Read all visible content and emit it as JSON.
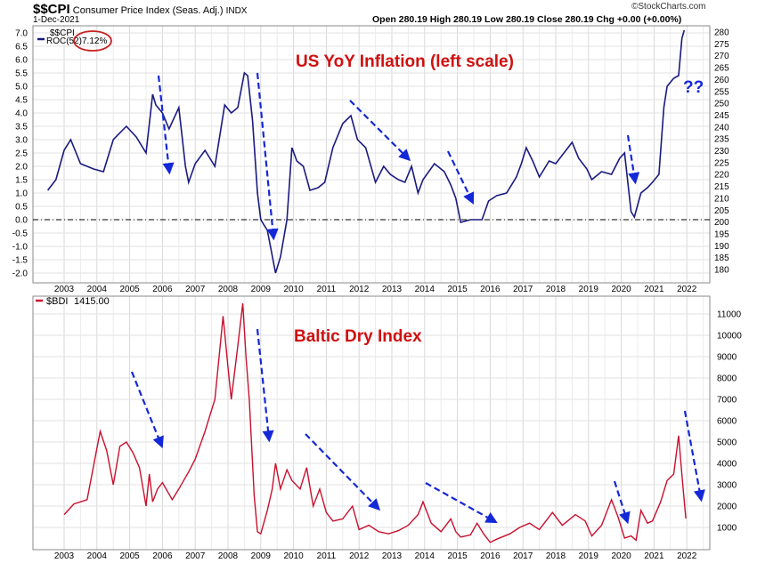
{
  "header": {
    "symbol": "$$CPI",
    "name": "Consumer Price Index (Seas. Adj.)",
    "exchange": "INDX",
    "date": "1-Dec-2021",
    "watermark": "©StockCharts.com",
    "ohlc": "Open 280.19  High 280.19  Low 280.19  Close 280.19  Chg +0.00 (+0.00%)"
  },
  "colors": {
    "cpi": "#1a1a80",
    "bdi": "#c8102e",
    "annotation_red": "#d01010",
    "arrow_blue": "#1428d8",
    "grid": "#d8d8d8"
  },
  "chart_data": [
    {
      "type": "line",
      "legend": {
        "symbol": "$$CPI",
        "indicator": "ROC(52)",
        "value": "7.12%"
      },
      "annotations": [
        "US YoY Inflation (left scale)",
        "??"
      ],
      "left_axis": {
        "ylim": [
          -2.0,
          7.0
        ],
        "ticks": [
          "7.0",
          "6.5",
          "6.0",
          "5.5",
          "5.0",
          "4.5",
          "4.0",
          "3.5",
          "3.0",
          "2.5",
          "2.0",
          "1.5",
          "1.0",
          "0.5",
          "0.0",
          "-0.5",
          "-1.0",
          "-1.5",
          "-2.0"
        ]
      },
      "right_axis": {
        "ylim": [
          180,
          280
        ],
        "ticks": [
          "280",
          "275",
          "270",
          "265",
          "260",
          "255",
          "250",
          "245",
          "240",
          "235",
          "230",
          "225",
          "220",
          "215",
          "210",
          "205",
          "200",
          "195",
          "190",
          "185",
          "180"
        ]
      },
      "x_ticks": [
        "2003",
        "2004",
        "2005",
        "2006",
        "2007",
        "2008",
        "2009",
        "2010",
        "2011",
        "2012",
        "2013",
        "2014",
        "2015",
        "2016",
        "2017",
        "2018",
        "2019",
        "2020",
        "2021",
        "2022"
      ],
      "series": [
        {
          "x": [
            2002.5,
            2002.75,
            2003.0,
            2003.2,
            2003.5,
            2003.9,
            2004.2,
            2004.5,
            2004.9,
            2005.2,
            2005.5,
            2005.7,
            2005.8,
            2006.0,
            2006.2,
            2006.5,
            2006.7,
            2006.8,
            2007.0,
            2007.3,
            2007.6,
            2007.9,
            2008.1,
            2008.3,
            2008.5,
            2008.6,
            2008.75,
            2008.9,
            2009.0,
            2009.2,
            2009.45,
            2009.6,
            2009.8,
            2009.95,
            2010.1,
            2010.3,
            2010.5,
            2010.75,
            2010.95,
            2011.2,
            2011.5,
            2011.75,
            2011.95,
            2012.2,
            2012.5,
            2012.75,
            2012.95,
            2013.2,
            2013.4,
            2013.6,
            2013.8,
            2013.95,
            2014.3,
            2014.6,
            2014.8,
            2014.95,
            2015.1,
            2015.4,
            2015.75,
            2015.95,
            2016.2,
            2016.5,
            2016.8,
            2016.95,
            2017.1,
            2017.3,
            2017.5,
            2017.8,
            2018.0,
            2018.5,
            2018.7,
            2018.95,
            2019.1,
            2019.4,
            2019.7,
            2019.95,
            2020.1,
            2020.3,
            2020.4,
            2020.6,
            2020.8,
            2020.95,
            2021.15,
            2021.3,
            2021.4,
            2021.6,
            2021.75,
            2021.85,
            2021.92
          ],
          "y": [
            1.1,
            1.5,
            2.6,
            3.0,
            2.1,
            1.9,
            1.8,
            3.0,
            3.5,
            3.1,
            2.5,
            4.7,
            4.3,
            4.0,
            3.4,
            4.2,
            2.0,
            1.4,
            2.1,
            2.6,
            2.0,
            4.3,
            4.0,
            4.2,
            5.5,
            5.4,
            3.7,
            1.0,
            0.0,
            -0.4,
            -2.0,
            -1.4,
            0.0,
            2.7,
            2.2,
            2.0,
            1.1,
            1.2,
            1.4,
            2.7,
            3.6,
            3.9,
            3.0,
            2.7,
            1.4,
            2.0,
            1.7,
            1.5,
            1.4,
            2.0,
            1.0,
            1.5,
            2.1,
            1.8,
            1.3,
            0.8,
            -0.1,
            0.0,
            0.0,
            0.7,
            0.9,
            1.0,
            1.6,
            2.1,
            2.7,
            2.2,
            1.6,
            2.2,
            2.1,
            2.9,
            2.3,
            1.9,
            1.5,
            1.8,
            1.7,
            2.3,
            2.5,
            0.3,
            0.1,
            1.0,
            1.2,
            1.4,
            1.7,
            4.2,
            5.0,
            5.3,
            5.4,
            6.8,
            7.1
          ]
        }
      ]
    },
    {
      "type": "line",
      "legend": {
        "symbol": "$BDI",
        "value": "1415.00"
      },
      "annotations": [
        "Baltic Dry Index"
      ],
      "right_axis": {
        "ylim": [
          0,
          11500
        ],
        "ticks": [
          "11000",
          "10000",
          "9000",
          "8000",
          "7000",
          "6000",
          "5000",
          "4000",
          "3000",
          "2000",
          "1000"
        ]
      },
      "x_ticks": [
        "2003",
        "2004",
        "2005",
        "2006",
        "2007",
        "2008",
        "2009",
        "2010",
        "2011",
        "2012",
        "2013",
        "2014",
        "2015",
        "2016",
        "2017",
        "2018",
        "2019",
        "2020",
        "2021",
        "2022"
      ],
      "series": [
        {
          "x": [
            2003.0,
            2003.3,
            2003.7,
            2003.85,
            2004.0,
            2004.1,
            2004.3,
            2004.5,
            2004.7,
            2004.9,
            2005.1,
            2005.3,
            2005.5,
            2005.6,
            2005.7,
            2005.85,
            2006.0,
            2006.3,
            2006.5,
            2006.8,
            2007.0,
            2007.3,
            2007.6,
            2007.85,
            2008.0,
            2008.1,
            2008.3,
            2008.45,
            2008.55,
            2008.65,
            2008.8,
            2008.9,
            2009.0,
            2009.2,
            2009.35,
            2009.45,
            2009.6,
            2009.8,
            2009.95,
            2010.2,
            2010.4,
            2010.6,
            2010.8,
            2011.0,
            2011.2,
            2011.5,
            2011.8,
            2012.0,
            2012.3,
            2012.6,
            2012.9,
            2013.2,
            2013.5,
            2013.8,
            2013.95,
            2014.2,
            2014.5,
            2014.8,
            2014.95,
            2015.1,
            2015.4,
            2015.6,
            2015.8,
            2016.0,
            2016.2,
            2016.6,
            2016.9,
            2017.2,
            2017.5,
            2017.9,
            2018.2,
            2018.6,
            2018.9,
            2019.1,
            2019.4,
            2019.7,
            2019.9,
            2020.1,
            2020.3,
            2020.45,
            2020.6,
            2020.8,
            2020.95,
            2021.2,
            2021.4,
            2021.6,
            2021.75,
            2021.82,
            2021.9,
            2021.97
          ],
          "y": [
            1600,
            2100,
            2300,
            3500,
            4700,
            5500,
            4600,
            3000,
            4800,
            5000,
            4500,
            3800,
            2000,
            3500,
            2200,
            2800,
            3100,
            2300,
            2800,
            3600,
            4200,
            5500,
            7000,
            10900,
            8500,
            7000,
            9500,
            11500,
            9000,
            7000,
            2500,
            800,
            700,
            1800,
            2800,
            4000,
            2800,
            3700,
            3200,
            2800,
            3800,
            2000,
            2800,
            1700,
            1300,
            1400,
            2000,
            900,
            1100,
            800,
            700,
            850,
            1100,
            1600,
            2200,
            1200,
            800,
            1400,
            800,
            550,
            650,
            1200,
            700,
            300,
            450,
            700,
            1000,
            1200,
            900,
            1700,
            1100,
            1600,
            1300,
            600,
            1100,
            2300,
            1500,
            500,
            600,
            400,
            1800,
            1200,
            1300,
            2200,
            3200,
            3500,
            5300,
            4000,
            2600,
            1415
          ]
        }
      ]
    }
  ]
}
